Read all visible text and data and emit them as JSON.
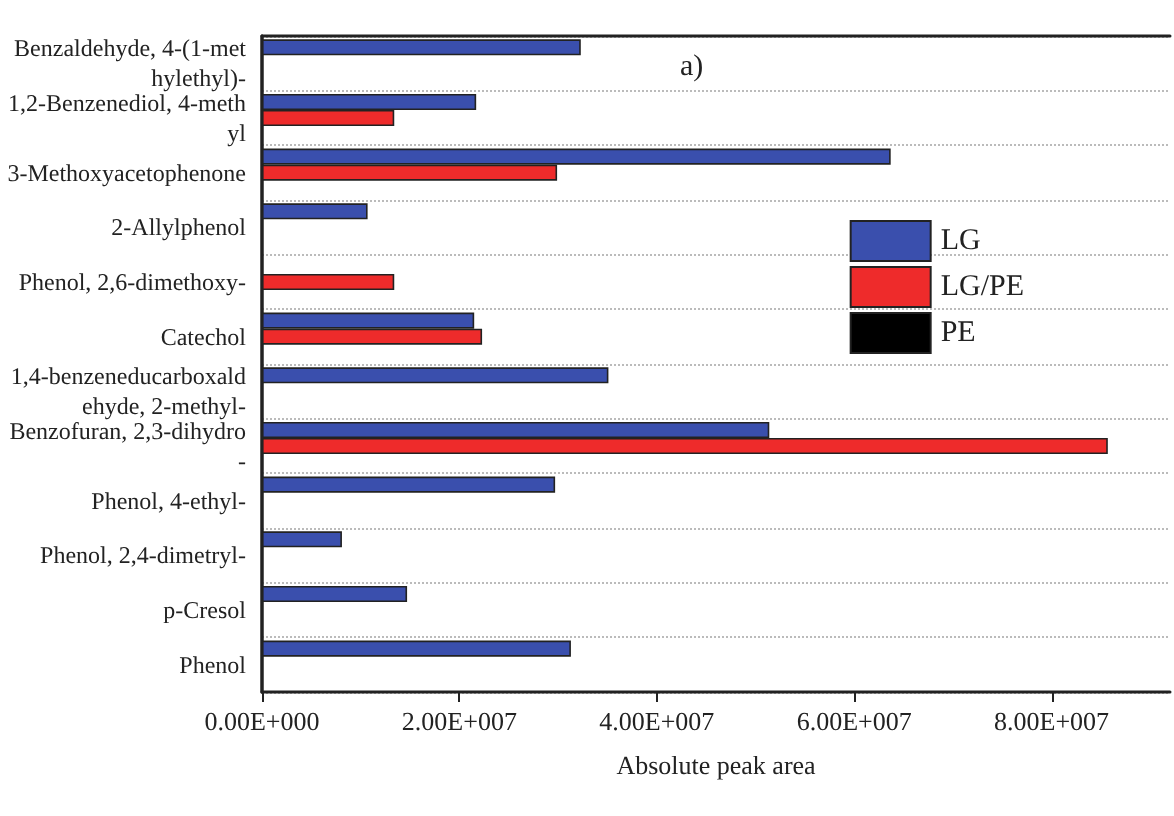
{
  "chart_data": {
    "type": "bar",
    "orientation": "horizontal",
    "xlabel": "Absolute peak area",
    "annotations": [
      "a)"
    ],
    "categories": [
      "Benzaldehyde, 4-(1-methylethyl)-",
      "1,2-Benzenediol, 4-methyl",
      "3-Methoxyacetophenone",
      "2-Allylphenol",
      "Phenol, 2,6-dimethoxy-",
      "Catechol",
      "1,4-benzeneducarboxaldehyde, 2-methyl-",
      "Benzofuran, 2,3-dihydro-",
      "Phenol, 4-ethyl-",
      "Phenol, 2,4-dimetryl-",
      "p-Cresol",
      "Phenol"
    ],
    "series": [
      {
        "name": "LG",
        "color": "#3a4fad",
        "values": [
          32300000,
          21700000,
          63700000,
          10700000,
          null,
          21500000,
          35100000,
          51400000,
          29700000,
          8100000,
          14700000,
          31300000
        ]
      },
      {
        "name": "LG/PE",
        "color": "#ee2b2b",
        "values": [
          null,
          13400000,
          29900000,
          null,
          13400000,
          22300000,
          null,
          85700000,
          null,
          null,
          null,
          null
        ]
      },
      {
        "name": "PE",
        "color": "#000000",
        "values": [
          null,
          null,
          null,
          null,
          null,
          null,
          null,
          null,
          null,
          null,
          null,
          null
        ]
      }
    ],
    "xlim": [
      0,
      92000000
    ],
    "xticks": [
      {
        "value": 0,
        "label": "0.00E+000"
      },
      {
        "value": 20000000,
        "label": "2.00E+007"
      },
      {
        "value": 40000000,
        "label": "4.00E+007"
      },
      {
        "value": 60000000,
        "label": "6.00E+007"
      },
      {
        "value": 80000000,
        "label": "8.00E+007"
      }
    ],
    "grid": "y",
    "legend": "right"
  }
}
